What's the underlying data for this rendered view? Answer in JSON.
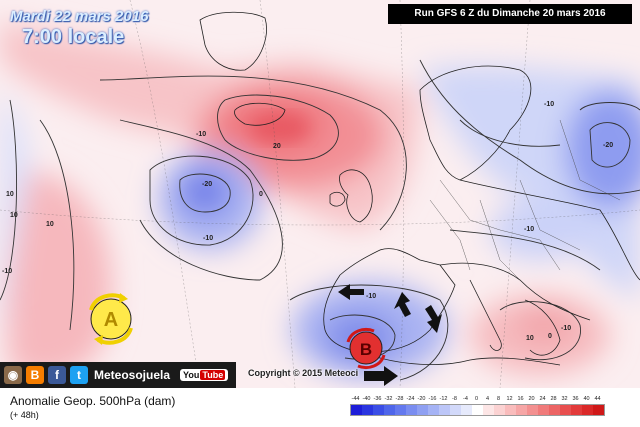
{
  "header": {
    "date": "Mardi 22 mars 2016",
    "time": "7:00 locale",
    "run": "Run GFS 6 Z du Dimanche 20 mars 2016"
  },
  "map": {
    "contour_labels": [
      "20",
      "-10",
      "-20",
      "0",
      "-10",
      "10",
      "-10",
      "10",
      "-10",
      "-20",
      "-10",
      "-10",
      "10",
      "0",
      "-10",
      "10"
    ],
    "pressure_systems": [
      {
        "letter": "A",
        "meaning": "high",
        "color": "#f0d000"
      },
      {
        "letter": "B",
        "meaning": "low",
        "color": "#d01818"
      }
    ],
    "colors": {
      "positive": "#f07a7a",
      "negative": "#6f7de8",
      "land": "#ffffff"
    }
  },
  "footer": {
    "social": {
      "brand": "Meteosojuela",
      "youtube": "You",
      "youtube_tube": "Tube"
    },
    "copyright": "Copyright © 2015 Meteoci",
    "title": "Anomalie Geop. 500hPa (dam)",
    "subtitle": "(+ 48h)",
    "legend": {
      "ticks": [
        "-44",
        "-40",
        "-36",
        "-32",
        "-28",
        "-24",
        "-20",
        "-16",
        "-12",
        "-8",
        "-4",
        "0",
        "4",
        "8",
        "12",
        "16",
        "20",
        "24",
        "28",
        "32",
        "36",
        "40",
        "44"
      ],
      "colors": [
        "#1d1dd8",
        "#2a35e0",
        "#3b4ee6",
        "#4f66ea",
        "#6479ee",
        "#7a8df0",
        "#8fa0f2",
        "#a5b3f5",
        "#bcc6f8",
        "#d2d9fa",
        "#e6eafc",
        "#ffffff",
        "#fde6e6",
        "#fbd2d2",
        "#f9bcbc",
        "#f6a6a6",
        "#f39090",
        "#f07a7a",
        "#ec6464",
        "#e84e4e",
        "#e23a3a",
        "#da2828",
        "#cf1818"
      ]
    }
  }
}
